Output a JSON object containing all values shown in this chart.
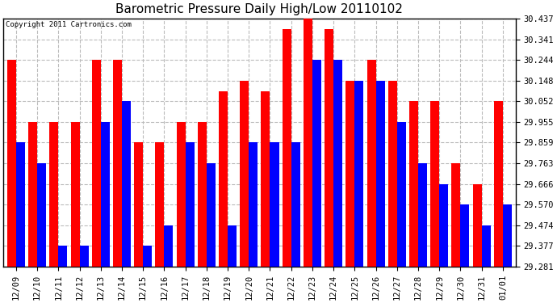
{
  "title": "Barometric Pressure Daily High/Low 20110102",
  "copyright": "Copyright 2011 Cartronics.com",
  "dates": [
    "12/09",
    "12/10",
    "12/11",
    "12/12",
    "12/13",
    "12/14",
    "12/15",
    "12/16",
    "12/17",
    "12/18",
    "12/19",
    "12/20",
    "12/21",
    "12/22",
    "12/23",
    "12/24",
    "12/25",
    "12/26",
    "12/27",
    "12/28",
    "12/29",
    "12/30",
    "12/31",
    "01/01"
  ],
  "high": [
    30.244,
    29.955,
    29.955,
    29.955,
    30.244,
    30.244,
    29.859,
    29.859,
    29.955,
    29.955,
    30.1,
    30.148,
    30.1,
    30.39,
    30.437,
    30.39,
    30.148,
    30.244,
    30.148,
    30.052,
    30.052,
    29.763,
    29.666,
    30.052
  ],
  "low": [
    29.859,
    29.763,
    29.377,
    29.377,
    29.955,
    30.052,
    29.377,
    29.474,
    29.859,
    29.763,
    29.474,
    29.859,
    29.859,
    29.859,
    30.244,
    30.244,
    30.148,
    30.148,
    29.955,
    29.763,
    29.666,
    29.57,
    29.474,
    29.57
  ],
  "high_color": "#ff0000",
  "low_color": "#0000ff",
  "bg_color": "#ffffff",
  "plot_bg_color": "#ffffff",
  "grid_color": "#bbbbbb",
  "title_color": "#000000",
  "yticks": [
    29.281,
    29.377,
    29.474,
    29.57,
    29.666,
    29.763,
    29.859,
    29.955,
    30.052,
    30.148,
    30.244,
    30.341,
    30.437
  ],
  "ymin": 29.281,
  "ymax": 30.437,
  "bar_width": 0.42
}
